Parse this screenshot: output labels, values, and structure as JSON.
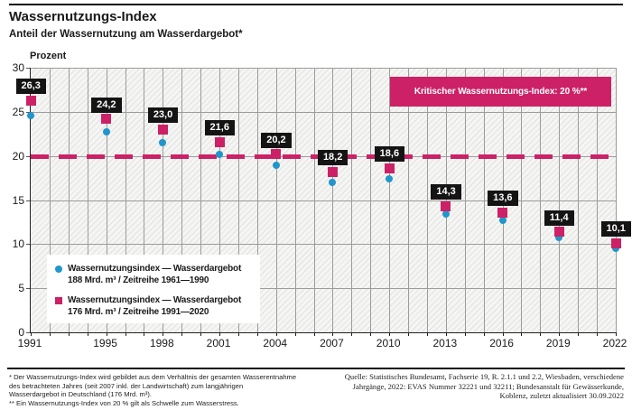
{
  "header": {
    "title": "Wassernutzungs-Index",
    "subtitle": "Anteil der Wassernutzung am Wasserdargebot*",
    "axis_unit_label": "Prozent"
  },
  "colors": {
    "pink": "#cc2166",
    "blue": "#2196cc",
    "grid": "#9c9c9c",
    "label_box": "#141414"
  },
  "chart_data": {
    "type": "scatter",
    "title": "Wassernutzungs-Index",
    "subtitle": "Anteil der Wassernutzung am Wasserdargebot*",
    "ylabel": "Prozent",
    "ylim": [
      0,
      30
    ],
    "yticks": [
      0,
      5,
      10,
      15,
      20,
      25,
      30
    ],
    "x_range": [
      1991,
      2022
    ],
    "x": [
      1991,
      1995,
      1998,
      2001,
      2004,
      2007,
      2010,
      2013,
      2016,
      2019,
      2022
    ],
    "grid": "vertical-every-year-and-horizontal-every-5",
    "legend_position": "inside-bottom-left",
    "series": [
      {
        "name": "Wassernutzungsindex — Wasserdargebot 188 Mrd. m³ / Zeitreihe 1961—1990",
        "marker": "circle",
        "color_key": "blue",
        "values": [
          24.6,
          22.7,
          21.5,
          20.2,
          18.9,
          17.0,
          17.4,
          13.4,
          12.7,
          10.7,
          9.5
        ],
        "note": "values estimated from plot position; not labeled in figure"
      },
      {
        "name": "Wassernutzungsindex — Wasserdargebot 176 Mrd. m³ / Zeitreihe 1991—2020",
        "marker": "square",
        "color_key": "pink",
        "values": [
          26.3,
          24.2,
          23.0,
          21.6,
          20.2,
          18.2,
          18.6,
          14.3,
          13.6,
          11.4,
          10.1
        ],
        "labels": [
          "26,3",
          "24,2",
          "23,0",
          "21,6",
          "20,2",
          "18,2",
          "18,6",
          "14,3",
          "13,6",
          "11,4",
          "10,1"
        ]
      }
    ],
    "threshold": {
      "value": 20,
      "label": "Kritischer Wassernutzungs-Index: 20 %**"
    }
  },
  "legend": {
    "items": [
      {
        "marker": "circle",
        "color_key": "blue",
        "line1": "Wassernutzungsindex — Wasserdargebot",
        "line2": "188 Mrd. m³ / Zeitreihe 1961—1990"
      },
      {
        "marker": "square",
        "color_key": "pink",
        "line1": "Wassernutzungsindex — Wasserdargebot",
        "line2": "176 Mrd. m³ / Zeitreihe 1991—2020"
      }
    ]
  },
  "footer": {
    "footnotes": [
      "* Der Wassernutzungs-Index wird gebildet aus dem Verhältnis der gesamten Wasserentnahme",
      "des betrachteten Jahres (seit 2007 inkl. der Landwirtschaft) zum langjährigen",
      "Wasserdargebot in Deutschland (176 Mrd. m³).",
      "** Ein Wassernutzungs-Index von 20 % gilt als Schwelle zum Wasserstress."
    ],
    "source_lines": [
      "Quelle: Statistisches Bundesamt, Fachserie 19, R. 2.1.1 und 2.2, Wiesbaden, verschiedene",
      "Jahrgänge, 2022: EVAS Nummer 32221 und 32211; Bundesanstalt für Gewässerkunde,",
      "Koblenz, zuletzt aktualisiert 30.09.2022"
    ]
  }
}
